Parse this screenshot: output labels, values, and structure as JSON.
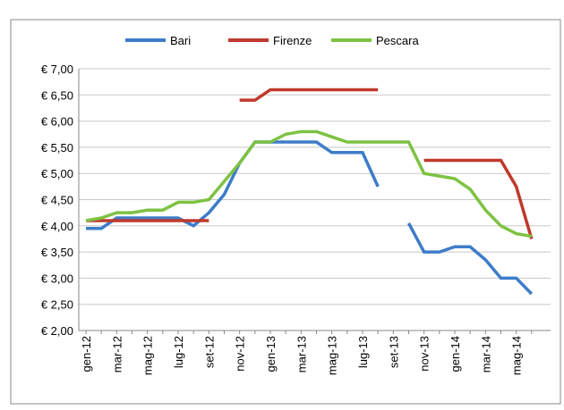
{
  "chart_data": {
    "type": "line",
    "categories": [
      "gen-12",
      null,
      "mar-12",
      null,
      "mag-12",
      null,
      "lug-12",
      null,
      "set-12",
      null,
      "nov-12",
      null,
      "gen-13",
      null,
      "mar-13",
      null,
      "mag-13",
      null,
      "lug-13",
      null,
      "set-13",
      null,
      "nov-13",
      null,
      "gen-14",
      null,
      "mar-14",
      null,
      "mag-14",
      null
    ],
    "series": [
      {
        "name": "Bari",
        "color": "#3d7cc9",
        "values": [
          3.95,
          3.95,
          4.15,
          4.15,
          4.15,
          4.15,
          4.15,
          4.0,
          4.25,
          4.6,
          5.2,
          5.6,
          5.6,
          5.6,
          5.6,
          5.6,
          5.4,
          5.4,
          5.4,
          4.75,
          null,
          4.05,
          3.5,
          3.5,
          3.6,
          3.6,
          3.35,
          3.0,
          3.0,
          2.7
        ]
      },
      {
        "name": "Firenze",
        "color": "#c0392b",
        "values": [
          4.1,
          4.1,
          4.1,
          4.1,
          4.1,
          4.1,
          4.1,
          4.1,
          4.1,
          null,
          6.4,
          6.4,
          6.6,
          6.6,
          6.6,
          6.6,
          6.6,
          6.6,
          6.6,
          6.6,
          null,
          null,
          5.25,
          5.25,
          5.25,
          5.25,
          5.25,
          5.25,
          4.75,
          3.75
        ]
      },
      {
        "name": "Pescara",
        "color": "#7dc242",
        "values": [
          4.1,
          4.15,
          4.25,
          4.25,
          4.3,
          4.3,
          4.45,
          4.45,
          4.5,
          4.85,
          5.2,
          5.6,
          5.6,
          5.75,
          5.8,
          5.8,
          5.7,
          5.6,
          5.6,
          5.6,
          5.6,
          5.6,
          5.0,
          4.95,
          4.9,
          4.7,
          4.3,
          4.0,
          3.85,
          3.8
        ]
      }
    ],
    "ylim": [
      2,
      7
    ],
    "yticks": [
      {
        "value": 2,
        "label": "€ 2,00"
      },
      {
        "value": 2.5,
        "label": "€ 2,50"
      },
      {
        "value": 3,
        "label": "€ 3,00"
      },
      {
        "value": 3.5,
        "label": "€ 3,50"
      },
      {
        "value": 4,
        "label": "€ 4,00"
      },
      {
        "value": 4.5,
        "label": "€ 4,50"
      },
      {
        "value": 5,
        "label": "€ 5,00"
      },
      {
        "value": 5.5,
        "label": "€ 5,50"
      },
      {
        "value": 6,
        "label": "€ 6,00"
      },
      {
        "value": 6.5,
        "label": "€ 6,50"
      },
      {
        "value": 7,
        "label": "€ 7,00"
      }
    ],
    "grid": true,
    "legend": "top"
  }
}
